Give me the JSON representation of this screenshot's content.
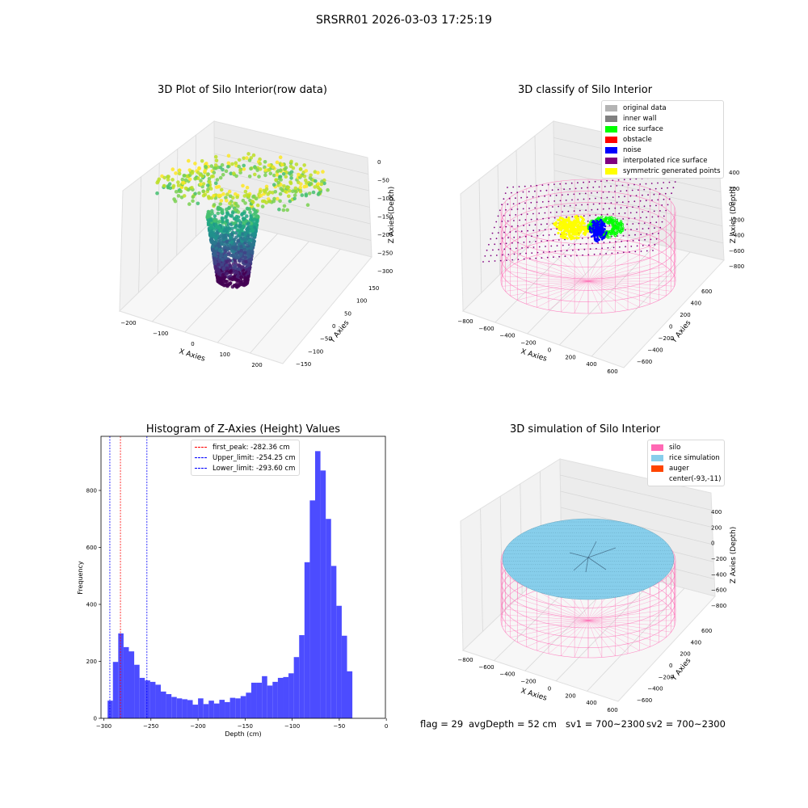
{
  "suptitle": "SRSRR01 2026-03-03 17:25:19",
  "panels": {
    "raw": {
      "title": "3D Plot of Silo Interior(row data)",
      "xlabel": "X Axies",
      "ylabel": "Y Axies",
      "zlabel": "Z Axies (Depth)",
      "xticks": [
        "−200",
        "−100",
        "0",
        "100",
        "200"
      ],
      "yticks": [
        "150",
        "100",
        "50",
        "0",
        "−50",
        "−100",
        "−150"
      ],
      "zticks": [
        "0",
        "−50",
        "−100",
        "−150",
        "−200",
        "−250",
        "−300"
      ],
      "colormap": "viridis"
    },
    "classify": {
      "title": "3D classify of Silo Interior",
      "xlabel": "X Axies",
      "ylabel": "Y Axies",
      "zlabel": "Z Axies (Depth)",
      "xticks": [
        "−800",
        "−600",
        "−400",
        "−200",
        "0",
        "200",
        "400",
        "600"
      ],
      "yticks": [
        "600",
        "400",
        "200",
        "0",
        "−200",
        "−400",
        "−600"
      ],
      "zticks": [
        "200",
        "0",
        "−200",
        "−400",
        "−600",
        "−800"
      ],
      "z_top_tick": "400",
      "legend": [
        {
          "label": "original data",
          "color": "#b3b3b3"
        },
        {
          "label": "inner wall",
          "color": "#808080"
        },
        {
          "label": "rice surface",
          "color": "#00ff00"
        },
        {
          "label": "obstacle",
          "color": "#ff0000"
        },
        {
          "label": "noise",
          "color": "#0000ff"
        },
        {
          "label": "interpolated rice surface",
          "color": "#800080"
        },
        {
          "label": "symmetric generated points",
          "color": "#ffff00"
        }
      ]
    },
    "simulation": {
      "title": "3D simulation of Silo Interior",
      "xlabel": "X Axies",
      "ylabel": "Y Axies",
      "zlabel": "Z Axies (Depth)",
      "xticks": [
        "−800",
        "−600",
        "−400",
        "−200",
        "0",
        "200",
        "400",
        "600"
      ],
      "yticks": [
        "600",
        "400",
        "200",
        "0",
        "−200",
        "−400",
        "−600"
      ],
      "zticks": [
        "400",
        "200",
        "0",
        "−200",
        "−400",
        "−600",
        "−800"
      ],
      "legend": [
        {
          "label": "silo",
          "color": "#ff69b4"
        },
        {
          "label": "rice simulation",
          "color": "#87ceeb"
        },
        {
          "label": "auger",
          "color": "#ff4500"
        },
        {
          "label": "center(-93,-11)",
          "color": "#ffffff"
        }
      ]
    }
  },
  "chart_data": {
    "type": "bar",
    "title": "Histogram of Z-Axies (Height) Values",
    "xlabel": "Depth (cm)",
    "ylabel": "Frequency",
    "xlim": [
      -303,
      -1
    ],
    "ylim": [
      0,
      990
    ],
    "xticks": [
      -300,
      -250,
      -200,
      -150,
      -100,
      -50,
      0
    ],
    "xtick_labels": [
      "−300",
      "−250",
      "−200",
      "−150",
      "−100",
      "−50",
      "0"
    ],
    "yticks": [
      0,
      200,
      400,
      600,
      800
    ],
    "yticks_labels": [
      "0",
      "200",
      "400",
      "600",
      "800"
    ],
    "bar_color": "#4c4cff",
    "bin_start": -296,
    "bin_width": 5.65,
    "values": [
      62,
      198,
      298,
      250,
      235,
      188,
      142,
      133,
      128,
      118,
      94,
      85,
      75,
      70,
      67,
      64,
      48,
      70,
      50,
      62,
      52,
      65,
      57,
      72,
      70,
      78,
      90,
      125,
      125,
      148,
      115,
      128,
      142,
      145,
      158,
      215,
      292,
      548,
      765,
      938,
      870,
      700,
      535,
      395,
      290,
      165
    ],
    "vlines": [
      {
        "x": -282.36,
        "color": "#ff0000",
        "label": "first_peak: -282.36 cm"
      },
      {
        "x": -254.25,
        "color": "#0000ff",
        "label": "Upper_limit: -254.25 cm"
      },
      {
        "x": -293.6,
        "color": "#0000ff",
        "label": "Lower_limit: -293.60 cm"
      }
    ],
    "legend_position": "top-center"
  },
  "footer": {
    "flag": "flag = 29",
    "avg_depth": "avgDepth = 52 cm",
    "sv1": "sv1 = 700~2300",
    "sv2": "sv2 = 700~2300"
  }
}
